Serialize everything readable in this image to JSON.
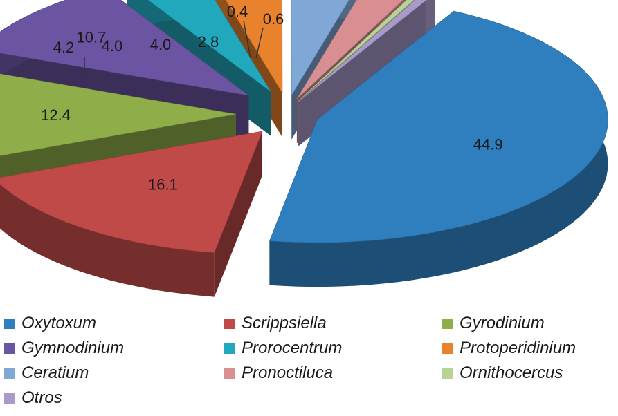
{
  "chart_data": {
    "type": "pie",
    "title": "",
    "categories": [
      "Oxytoxum",
      "Scrippsiella",
      "Gyrodinium",
      "Gymnodinium",
      "Prorocentrum",
      "Protoperidinium",
      "Ceratium",
      "Pronoctiluca",
      "Ornithocercus",
      "Otros"
    ],
    "values": [
      44.9,
      16.1,
      12.4,
      10.7,
      4.2,
      4.0,
      4.0,
      2.8,
      0.4,
      0.6
    ],
    "data_labels": [
      "44.9",
      "16.1",
      "12.4",
      "10.7",
      "4.2",
      "4.0",
      "4.0",
      "2.8",
      "0.4",
      "0.6"
    ],
    "colors": [
      "#2F7FBF",
      "#BF4A48",
      "#8FAE4A",
      "#6B55A3",
      "#22A8BC",
      "#E8822D",
      "#7FA8D7",
      "#D98F92",
      "#B9D394",
      "#A99AC9"
    ],
    "legend_position": "bottom",
    "style": "3d-exploded"
  }
}
